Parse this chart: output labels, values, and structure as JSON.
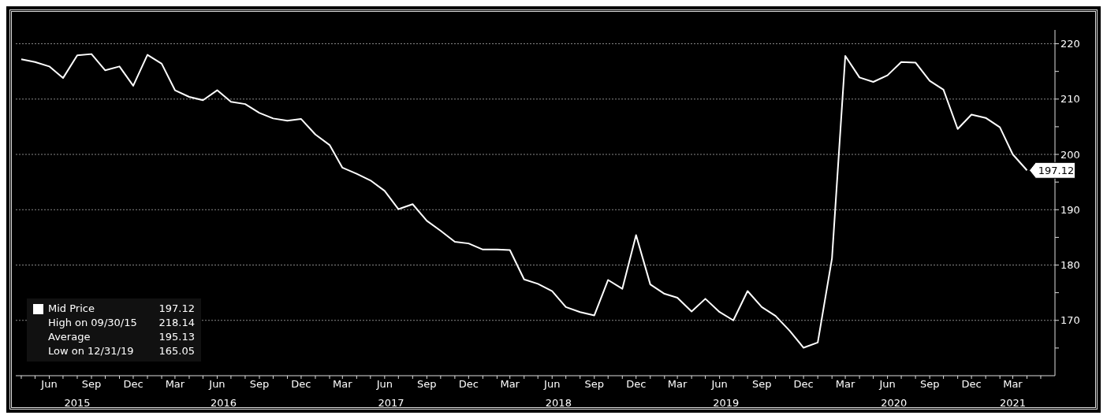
{
  "chart_data": {
    "type": "line",
    "x": [
      "2015-04",
      "2015-05",
      "2015-06",
      "2015-07",
      "2015-08",
      "2015-09",
      "2015-10",
      "2015-11",
      "2015-12",
      "2016-01",
      "2016-02",
      "2016-03",
      "2016-04",
      "2016-05",
      "2016-06",
      "2016-07",
      "2016-08",
      "2016-09",
      "2016-10",
      "2016-11",
      "2016-12",
      "2017-01",
      "2017-02",
      "2017-03",
      "2017-04",
      "2017-05",
      "2017-06",
      "2017-07",
      "2017-08",
      "2017-09",
      "2017-10",
      "2017-11",
      "2017-12",
      "2018-01",
      "2018-02",
      "2018-03",
      "2018-04",
      "2018-05",
      "2018-06",
      "2018-07",
      "2018-08",
      "2018-09",
      "2018-10",
      "2018-11",
      "2018-12",
      "2019-01",
      "2019-02",
      "2019-03",
      "2019-04",
      "2019-05",
      "2019-06",
      "2019-07",
      "2019-08",
      "2019-09",
      "2019-10",
      "2019-11",
      "2019-12",
      "2020-01",
      "2020-02",
      "2020-03",
      "2020-04",
      "2020-05",
      "2020-06",
      "2020-07",
      "2020-08",
      "2020-09",
      "2020-10",
      "2020-11",
      "2020-12",
      "2021-01",
      "2021-02",
      "2021-03",
      "2021-04"
    ],
    "series": [
      {
        "name": "Mid Price",
        "color": "#ffffff",
        "values": [
          217.2,
          216.7,
          215.9,
          213.8,
          217.9,
          218.14,
          215.2,
          215.9,
          212.4,
          218.0,
          216.4,
          211.6,
          210.4,
          209.8,
          211.6,
          209.5,
          209.1,
          207.5,
          206.5,
          206.1,
          206.4,
          203.6,
          201.7,
          197.6,
          196.5,
          195.3,
          193.4,
          190.1,
          191.0,
          188.0,
          186.2,
          184.2,
          183.9,
          182.8,
          182.8,
          182.7,
          177.4,
          176.6,
          175.3,
          172.4,
          171.5,
          170.9,
          177.3,
          175.7,
          185.4,
          176.5,
          174.8,
          174.1,
          171.6,
          173.9,
          171.5,
          170.0,
          175.3,
          172.4,
          170.8,
          168.1,
          165.05,
          166.0,
          181.2,
          217.8,
          213.9,
          213.1,
          214.3,
          216.7,
          216.6,
          213.3,
          211.7,
          204.6,
          207.2,
          206.6,
          204.9,
          200.0,
          197.12
        ],
        "value_labels": [
          null,
          null,
          null,
          null,
          null,
          null,
          null,
          null,
          null,
          null,
          null,
          null,
          null,
          null,
          null,
          null,
          null,
          null,
          null,
          null,
          null,
          null,
          null,
          null,
          null,
          null,
          null,
          null,
          null,
          null,
          null,
          null,
          null,
          null,
          null,
          null,
          null,
          null,
          null,
          null,
          null,
          null,
          null,
          null,
          null,
          null,
          null,
          null,
          null,
          null,
          null,
          null,
          null,
          null,
          null,
          null,
          null,
          null,
          null,
          null,
          null,
          null,
          null,
          null,
          null,
          null,
          null,
          null,
          null,
          null,
          null,
          null,
          "197.12"
        ]
      }
    ],
    "annotations": [
      "High on 09/30/15 218.14",
      "Average 195.13",
      "Low on 12/31/19 165.05"
    ],
    "xlim": [
      "2015-03-20",
      "2021-06-01"
    ],
    "xticks": [
      {
        "value": "2015-04",
        "label": null
      },
      {
        "value": "2015-05",
        "label": null
      },
      {
        "value": "2015-06",
        "label": "Jun"
      },
      {
        "value": "2015-07",
        "label": null
      },
      {
        "value": "2015-08",
        "label": null
      },
      {
        "value": "2015-09",
        "label": "Sep"
      },
      {
        "value": "2015-10",
        "label": null
      },
      {
        "value": "2015-11",
        "label": null
      },
      {
        "value": "2015-12",
        "label": "Dec"
      },
      {
        "value": "2016-01",
        "label": null
      },
      {
        "value": "2016-02",
        "label": null
      },
      {
        "value": "2016-03",
        "label": "Mar"
      },
      {
        "value": "2016-04",
        "label": null
      },
      {
        "value": "2016-05",
        "label": null
      },
      {
        "value": "2016-06",
        "label": "Jun"
      },
      {
        "value": "2016-07",
        "label": null
      },
      {
        "value": "2016-08",
        "label": null
      },
      {
        "value": "2016-09",
        "label": "Sep"
      },
      {
        "value": "2016-10",
        "label": null
      },
      {
        "value": "2016-11",
        "label": null
      },
      {
        "value": "2016-12",
        "label": "Dec"
      },
      {
        "value": "2017-01",
        "label": null
      },
      {
        "value": "2017-02",
        "label": null
      },
      {
        "value": "2017-03",
        "label": "Mar"
      },
      {
        "value": "2017-04",
        "label": null
      },
      {
        "value": "2017-05",
        "label": null
      },
      {
        "value": "2017-06",
        "label": "Jun"
      },
      {
        "value": "2017-07",
        "label": null
      },
      {
        "value": "2017-08",
        "label": null
      },
      {
        "value": "2017-09",
        "label": "Sep"
      },
      {
        "value": "2017-10",
        "label": null
      },
      {
        "value": "2017-11",
        "label": null
      },
      {
        "value": "2017-12",
        "label": "Dec"
      },
      {
        "value": "2018-01",
        "label": null
      },
      {
        "value": "2018-02",
        "label": null
      },
      {
        "value": "2018-03",
        "label": "Mar"
      },
      {
        "value": "2018-04",
        "label": null
      },
      {
        "value": "2018-05",
        "label": null
      },
      {
        "value": "2018-06",
        "label": "Jun"
      },
      {
        "value": "2018-07",
        "label": null
      },
      {
        "value": "2018-08",
        "label": null
      },
      {
        "value": "2018-09",
        "label": "Sep"
      },
      {
        "value": "2018-10",
        "label": null
      },
      {
        "value": "2018-11",
        "label": null
      },
      {
        "value": "2018-12",
        "label": "Dec"
      },
      {
        "value": "2019-01",
        "label": null
      },
      {
        "value": "2019-02",
        "label": null
      },
      {
        "value": "2019-03",
        "label": "Mar"
      },
      {
        "value": "2019-04",
        "label": null
      },
      {
        "value": "2019-05",
        "label": null
      },
      {
        "value": "2019-06",
        "label": "Jun"
      },
      {
        "value": "2019-07",
        "label": null
      },
      {
        "value": "2019-08",
        "label": null
      },
      {
        "value": "2019-09",
        "label": "Sep"
      },
      {
        "value": "2019-10",
        "label": null
      },
      {
        "value": "2019-11",
        "label": null
      },
      {
        "value": "2019-12",
        "label": "Dec"
      },
      {
        "value": "2020-01",
        "label": null
      },
      {
        "value": "2020-02",
        "label": null
      },
      {
        "value": "2020-03",
        "label": "Mar"
      },
      {
        "value": "2020-04",
        "label": null
      },
      {
        "value": "2020-05",
        "label": null
      },
      {
        "value": "2020-06",
        "label": "Jun"
      },
      {
        "value": "2020-07",
        "label": null
      },
      {
        "value": "2020-08",
        "label": null
      },
      {
        "value": "2020-09",
        "label": "Sep"
      },
      {
        "value": "2020-10",
        "label": null
      },
      {
        "value": "2020-11",
        "label": null
      },
      {
        "value": "2020-12",
        "label": "Dec"
      },
      {
        "value": "2021-01",
        "label": null
      },
      {
        "value": "2021-02",
        "label": null
      },
      {
        "value": "2021-03",
        "label": "Mar"
      },
      {
        "value": "2021-04",
        "label": null
      },
      {
        "value": "2021-05",
        "label": null
      }
    ],
    "x2lim": [
      "2015-03-20",
      "2021-06-01"
    ],
    "x2ticks": [
      {
        "value": "2015-08",
        "label": "2015"
      },
      {
        "value": "2016-06-15",
        "label": "2016"
      },
      {
        "value": "2017-06-15",
        "label": "2017"
      },
      {
        "value": "2018-06-15",
        "label": "2018"
      },
      {
        "value": "2019-06-15",
        "label": "2019"
      },
      {
        "value": "2020-06-15",
        "label": "2020"
      },
      {
        "value": "2021-03",
        "label": "2021"
      }
    ],
    "ylim": [
      160,
      222.5
    ],
    "yticks": [
      {
        "value": 165,
        "label": null
      },
      170,
      {
        "value": 175,
        "label": null
      },
      180,
      {
        "value": 185,
        "label": null
      },
      190,
      {
        "value": 195,
        "label": null
      },
      200,
      {
        "value": 205,
        "label": null
      },
      210,
      {
        "value": 215,
        "label": null
      },
      220
    ],
    "grid": "y",
    "legend": "bottom left"
  }
}
